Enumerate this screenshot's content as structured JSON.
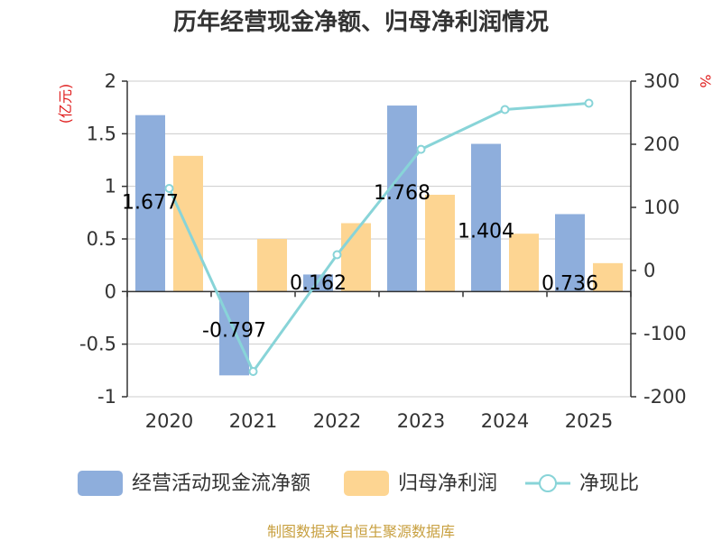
{
  "chart_data": {
    "type": "bar",
    "title": "历年经营现金净额、归母净利润情况",
    "categories": [
      "2020",
      "2021",
      "2022",
      "2023",
      "2024",
      "2025"
    ],
    "series": [
      {
        "name": "经营活动现金流净额",
        "axis": "left",
        "kind": "bar",
        "color": "#8eaedc",
        "values": [
          1.677,
          -0.797,
          0.162,
          1.768,
          1.404,
          0.736
        ],
        "labels": [
          "1.677",
          "-0.797",
          "0.162",
          "1.768",
          "1.404",
          "0.736"
        ]
      },
      {
        "name": "归母净利润",
        "axis": "left",
        "kind": "bar",
        "color": "#fdd592",
        "values": [
          1.29,
          0.5,
          0.65,
          0.92,
          0.55,
          0.27
        ]
      },
      {
        "name": "净现比",
        "axis": "right",
        "kind": "line",
        "color": "#88d4d8",
        "values": [
          130,
          -160,
          25,
          192,
          255,
          265
        ]
      }
    ],
    "y_left": {
      "unit": "(亿元)",
      "ylim": [
        -1,
        2
      ],
      "ticks": [
        "2",
        "1.5",
        "1",
        "0.5",
        "0",
        "-0.5",
        "-1"
      ]
    },
    "y_right": {
      "unit": "%",
      "ylim": [
        -200,
        300
      ],
      "ticks": [
        "300",
        "200",
        "100",
        "0",
        "-100",
        "-200"
      ]
    },
    "legend_position": "bottom",
    "source": "制图数据来自恒生聚源数据库"
  }
}
